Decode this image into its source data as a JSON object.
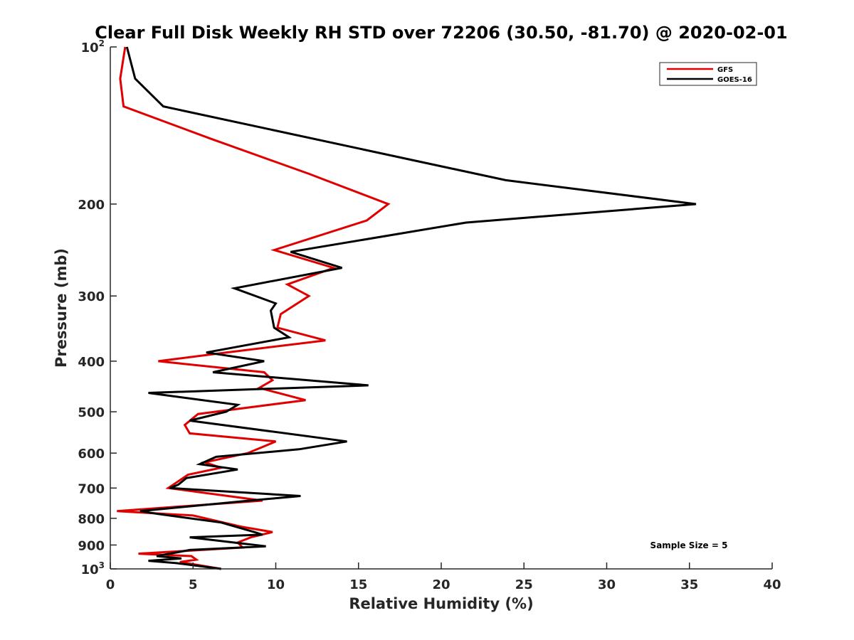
{
  "chart_data": {
    "type": "line",
    "title": "Clear Full Disk Weekly RH STD over 72206 (30.50, -81.70) @ 2020-02-01",
    "xlabel": "Relative Humidity (%)",
    "ylabel": "Pressure (mb)",
    "xlim": [
      0,
      40
    ],
    "ylim": [
      1000,
      100
    ],
    "y_scale": "log",
    "y_reversed": true,
    "grid": false,
    "legend_position": "top-right",
    "x_ticks": [
      0,
      5,
      10,
      15,
      20,
      25,
      30,
      35,
      40
    ],
    "x_tick_labels": [
      "0",
      "5",
      "10",
      "15",
      "20",
      "25",
      "30",
      "35",
      "40"
    ],
    "y_ticks": [
      100,
      200,
      300,
      400,
      500,
      600,
      700,
      800,
      900,
      1000
    ],
    "y_tick_labels": [
      {
        "base": "10",
        "sup": "2"
      },
      {
        "base": "200",
        "sup": ""
      },
      {
        "base": "300",
        "sup": ""
      },
      {
        "base": "400",
        "sup": ""
      },
      {
        "base": "500",
        "sup": ""
      },
      {
        "base": "600",
        "sup": ""
      },
      {
        "base": "700",
        "sup": ""
      },
      {
        "base": "800",
        "sup": ""
      },
      {
        "base": "900",
        "sup": ""
      },
      {
        "base": "10",
        "sup": "3"
      }
    ],
    "annotation": "Sample Size = 5",
    "series": [
      {
        "name": "GFS",
        "color": "#e00000",
        "points": [
          [
            0.9,
            100
          ],
          [
            0.6,
            115
          ],
          [
            0.8,
            130
          ],
          [
            6.1,
            150
          ],
          [
            12.0,
            175
          ],
          [
            16.8,
            200
          ],
          [
            15.5,
            215
          ],
          [
            9.9,
            245
          ],
          [
            13.5,
            265
          ],
          [
            10.7,
            285
          ],
          [
            12.0,
            300
          ],
          [
            10.3,
            325
          ],
          [
            10.1,
            345
          ],
          [
            13.0,
            365
          ],
          [
            7.0,
            385
          ],
          [
            2.9,
            400
          ],
          [
            9.3,
            420
          ],
          [
            9.8,
            435
          ],
          [
            9.0,
            450
          ],
          [
            11.8,
            475
          ],
          [
            5.3,
            505
          ],
          [
            4.5,
            530
          ],
          [
            4.8,
            550
          ],
          [
            10.0,
            570
          ],
          [
            8.3,
            600
          ],
          [
            5.7,
            625
          ],
          [
            6.7,
            640
          ],
          [
            4.7,
            660
          ],
          [
            3.5,
            700
          ],
          [
            9.2,
            740
          ],
          [
            0.4,
            775
          ],
          [
            5.0,
            790
          ],
          [
            7.9,
            830
          ],
          [
            9.8,
            850
          ],
          [
            8.5,
            870
          ],
          [
            7.7,
            890
          ],
          [
            8.0,
            910
          ],
          [
            1.7,
            935
          ],
          [
            4.9,
            945
          ],
          [
            5.2,
            960
          ],
          [
            4.2,
            970
          ],
          [
            6.7,
            1000
          ]
        ]
      },
      {
        "name": "GOES-16",
        "color": "#000000",
        "points": [
          [
            1.0,
            100
          ],
          [
            1.5,
            115
          ],
          [
            3.2,
            130
          ],
          [
            23.9,
            180
          ],
          [
            35.4,
            200
          ],
          [
            21.5,
            217
          ],
          [
            10.9,
            247
          ],
          [
            14.0,
            265
          ],
          [
            7.5,
            290
          ],
          [
            10.0,
            310
          ],
          [
            9.7,
            320
          ],
          [
            9.9,
            345
          ],
          [
            10.8,
            360
          ],
          [
            5.8,
            385
          ],
          [
            9.3,
            400
          ],
          [
            6.2,
            420
          ],
          [
            15.6,
            445
          ],
          [
            2.3,
            460
          ],
          [
            7.7,
            485
          ],
          [
            7.0,
            500
          ],
          [
            4.8,
            520
          ],
          [
            14.3,
            570
          ],
          [
            11.4,
            590
          ],
          [
            6.4,
            610
          ],
          [
            5.4,
            630
          ],
          [
            7.7,
            645
          ],
          [
            4.6,
            670
          ],
          [
            4.1,
            690
          ],
          [
            3.6,
            700
          ],
          [
            11.5,
            725
          ],
          [
            8.4,
            740
          ],
          [
            1.8,
            775
          ],
          [
            2.9,
            785
          ],
          [
            6.7,
            815
          ],
          [
            8.7,
            850
          ],
          [
            9.2,
            860
          ],
          [
            4.8,
            870
          ],
          [
            9.4,
            905
          ],
          [
            4.8,
            920
          ],
          [
            2.8,
            945
          ],
          [
            4.3,
            955
          ],
          [
            2.3,
            965
          ],
          [
            4.0,
            975
          ],
          [
            6.7,
            1000
          ]
        ]
      }
    ]
  }
}
